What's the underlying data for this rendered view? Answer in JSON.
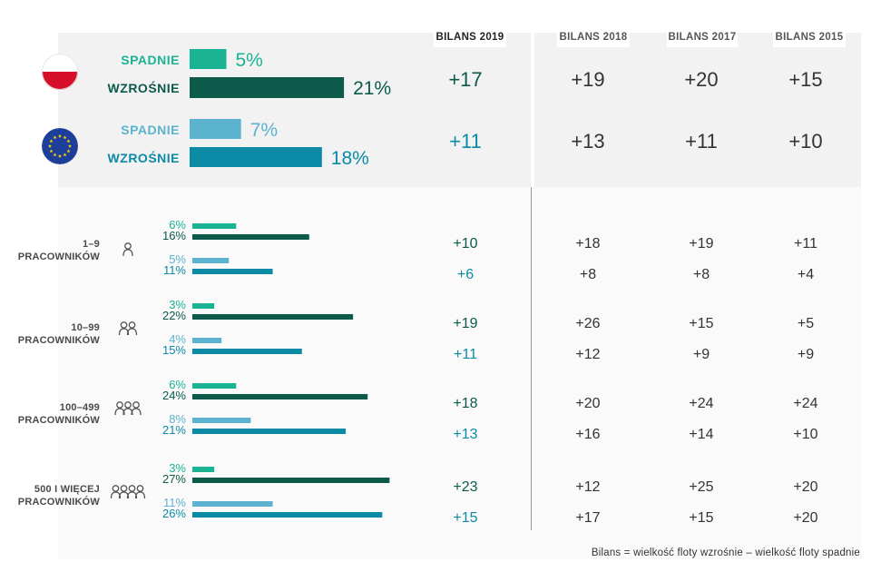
{
  "columns": [
    "BILANS 2019",
    "BILANS 2018",
    "BILANS 2017",
    "BILANS 2015"
  ],
  "footnote": "Bilans = wielkość floty wzrośnie – wielkość floty spadnie",
  "colors": {
    "pl_down": "#1ab394",
    "pl_up": "#0b5a4a",
    "eu_down": "#5bb3cf",
    "eu_up": "#0b8aa6",
    "label": "#555555",
    "value": "#333333"
  },
  "icons": [
    "poland-flag-icon",
    "eu-flag-icon",
    "person-icon"
  ],
  "chart_data": {
    "type": "bar",
    "title": "",
    "xlim": [
      0,
      30
    ],
    "series_names": [
      "SPADNIE",
      "WZROŚNIE"
    ],
    "top_rows": [
      {
        "region": "Polska",
        "label": "SPADNIE",
        "value": 5,
        "display": "5%",
        "kind": "pl_down"
      },
      {
        "region": "Polska",
        "label": "WZROŚNIE",
        "value": 21,
        "display": "21%",
        "kind": "pl_up"
      },
      {
        "region": "Europa",
        "label": "SPADNIE",
        "value": 7,
        "display": "7%",
        "kind": "eu_down"
      },
      {
        "region": "Europa",
        "label": "WZROŚNIE",
        "value": 18,
        "display": "18%",
        "kind": "eu_up"
      }
    ],
    "top_balances": [
      {
        "region": "Polska",
        "values": [
          "+17",
          "+19",
          "+20",
          "+15"
        ]
      },
      {
        "region": "Europa",
        "values": [
          "+11",
          "+13",
          "+11",
          "+10"
        ]
      }
    ],
    "groups": [
      {
        "label": [
          "1–9",
          "PRACOWNIKÓW"
        ],
        "people": 1,
        "bars": [
          {
            "value": 6,
            "display": "6%",
            "kind": "pl_down"
          },
          {
            "value": 16,
            "display": "16%",
            "kind": "pl_up"
          },
          {
            "value": 5,
            "display": "5%",
            "kind": "eu_down"
          },
          {
            "value": 11,
            "display": "11%",
            "kind": "eu_up"
          }
        ],
        "balances": [
          [
            "+10",
            "+18",
            "+19",
            "+11"
          ],
          [
            "+6",
            "+8",
            "+8",
            "+4"
          ]
        ]
      },
      {
        "label": [
          "10–99",
          "PRACOWNIKÓW"
        ],
        "people": 2,
        "bars": [
          {
            "value": 3,
            "display": "3%",
            "kind": "pl_down"
          },
          {
            "value": 22,
            "display": "22%",
            "kind": "pl_up"
          },
          {
            "value": 4,
            "display": "4%",
            "kind": "eu_down"
          },
          {
            "value": 15,
            "display": "15%",
            "kind": "eu_up"
          }
        ],
        "balances": [
          [
            "+19",
            "+26",
            "+15",
            "+5"
          ],
          [
            "+11",
            "+12",
            "+9",
            "+9"
          ]
        ]
      },
      {
        "label": [
          "100–499",
          "PRACOWNIKÓW"
        ],
        "people": 3,
        "bars": [
          {
            "value": 6,
            "display": "6%",
            "kind": "pl_down"
          },
          {
            "value": 24,
            "display": "24%",
            "kind": "pl_up"
          },
          {
            "value": 8,
            "display": "8%",
            "kind": "eu_down"
          },
          {
            "value": 21,
            "display": "21%",
            "kind": "eu_up"
          }
        ],
        "balances": [
          [
            "+18",
            "+20",
            "+24",
            "+24"
          ],
          [
            "+13",
            "+16",
            "+14",
            "+10"
          ]
        ]
      },
      {
        "label": [
          "500 I WIĘCEJ",
          "PRACOWNIKÓW"
        ],
        "people": 4,
        "bars": [
          {
            "value": 3,
            "display": "3%",
            "kind": "pl_down"
          },
          {
            "value": 27,
            "display": "27%",
            "kind": "pl_up"
          },
          {
            "value": 11,
            "display": "11%",
            "kind": "eu_down"
          },
          {
            "value": 26,
            "display": "26%",
            "kind": "eu_up"
          }
        ],
        "balances": [
          [
            "+23",
            "+12",
            "+25",
            "+20"
          ],
          [
            "+15",
            "+17",
            "+15",
            "+20"
          ]
        ]
      }
    ]
  }
}
